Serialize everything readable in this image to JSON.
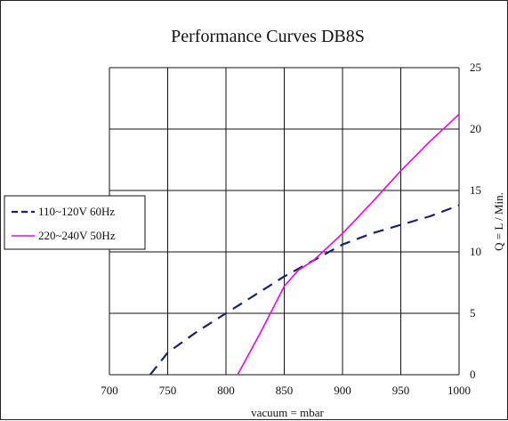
{
  "chart_data": {
    "type": "line",
    "title": "Performance Curves DB8S",
    "xlabel": "vacuum = mbar",
    "ylabel": "Q = L / Min.",
    "xlim": [
      700,
      1000
    ],
    "ylim": [
      0,
      25
    ],
    "x_ticks": [
      700,
      750,
      800,
      850,
      900,
      950,
      1000
    ],
    "y_ticks": [
      0,
      5,
      10,
      15,
      20,
      25
    ],
    "y_axis_side": "right",
    "grid": true,
    "legend_placement": "left",
    "series": [
      {
        "name": "110~120V 60Hz",
        "color": "#1a2070",
        "style": "dashed",
        "x": [
          735,
          750,
          775,
          800,
          825,
          850,
          875,
          900,
          925,
          950,
          975,
          1000
        ],
        "y": [
          0,
          1.8,
          3.5,
          5.0,
          6.5,
          8.0,
          9.3,
          10.6,
          11.5,
          12.2,
          12.9,
          13.8
        ]
      },
      {
        "name": "220~240V 50Hz",
        "color": "#ee00ee",
        "style": "solid",
        "x": [
          810,
          830,
          850,
          862,
          875,
          900,
          925,
          950,
          975,
          1000
        ],
        "y": [
          0,
          3.5,
          7.2,
          8.5,
          9.3,
          11.5,
          14.0,
          16.6,
          19.0,
          21.2
        ]
      }
    ]
  }
}
